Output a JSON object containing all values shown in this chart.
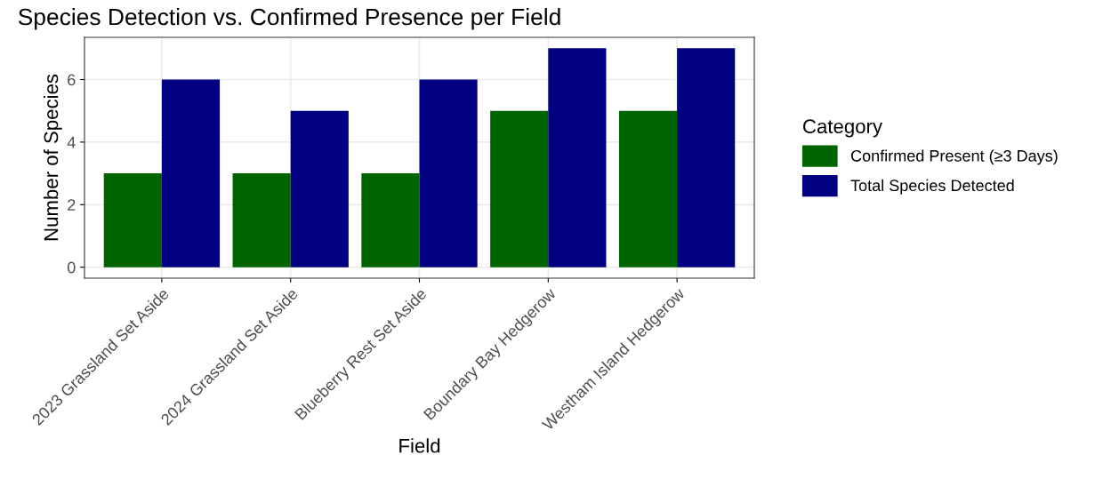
{
  "chart_data": {
    "type": "bar",
    "title": "Species Detection vs. Confirmed Presence per Field",
    "xlabel": "Field",
    "ylabel": "Number of Species",
    "legend_title": "Category",
    "categories": [
      "2023 Grassland Set Aside",
      "2024 Grassland Set Aside",
      "Blueberry Rest Set Aside",
      "Boundary Bay Hedgerow",
      "Westham Island Hedgerow"
    ],
    "series": [
      {
        "name": "Confirmed Present (≥3 Days)",
        "color": "#006400",
        "values": [
          3,
          3,
          3,
          5,
          5
        ]
      },
      {
        "name": "Total Species Detected",
        "color": "#000080",
        "values": [
          6,
          5,
          6,
          7,
          7
        ]
      }
    ],
    "ylim": [
      -0.35,
      7.35
    ],
    "yticks": [
      0,
      2,
      4,
      6
    ],
    "grid": true,
    "legend": "right"
  }
}
